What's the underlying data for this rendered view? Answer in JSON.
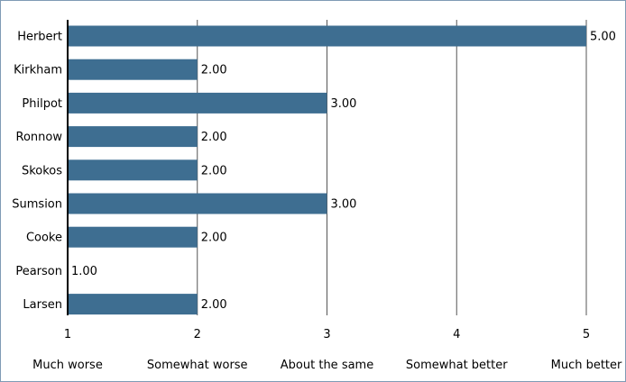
{
  "chart_data": {
    "type": "bar",
    "orientation": "horizontal",
    "title": "",
    "xlabel": "",
    "ylabel": "",
    "categories": [
      "Herbert",
      "Kirkham",
      "Philpot",
      "Ronnow",
      "Skokos",
      "Sumsion",
      "Cooke",
      "Pearson",
      "Larsen"
    ],
    "values": [
      5,
      2,
      3,
      2,
      2,
      3,
      2,
      1,
      2
    ],
    "value_labels": [
      "5.00",
      "2.00",
      "3.00",
      "2.00",
      "2.00",
      "3.00",
      "2.00",
      "1.00",
      "2.00"
    ],
    "xlim": [
      1,
      5
    ],
    "x_ticks": [
      1,
      2,
      3,
      4,
      5
    ],
    "x_tick_labels": [
      "1",
      "2",
      "3",
      "4",
      "5"
    ],
    "x_tick_descriptions": [
      "Much worse",
      "Somewhat worse",
      "About the same",
      "Somewhat better",
      "Much better"
    ],
    "grid": "vertical",
    "legend": "none",
    "bar_color": "#3e6e91",
    "grid_color": "#555555"
  }
}
